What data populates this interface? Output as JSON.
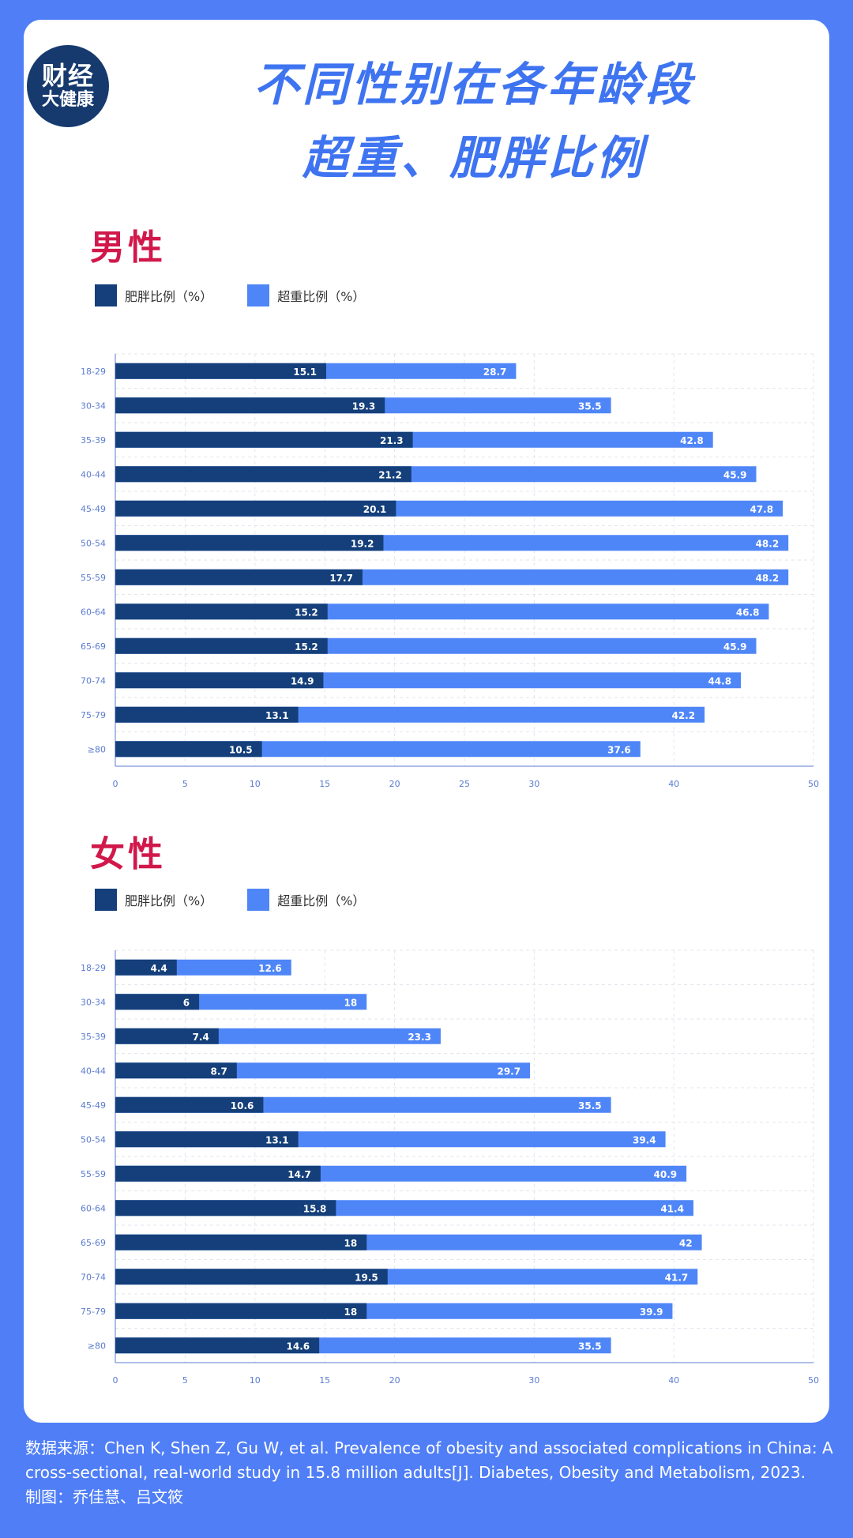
{
  "header": {
    "logo_line1": "财经",
    "logo_line2": "大健康",
    "title_line1": "不同性别在各年龄段",
    "title_line2": "超重、肥胖比例"
  },
  "colors": {
    "obese": "#143f7a",
    "overweight": "#4f86f7",
    "section": "#d1184b",
    "title": "#3f74f1"
  },
  "legend": {
    "obese": "肥胖比例（%）",
    "overweight": "超重比例（%）"
  },
  "chart_data": [
    {
      "type": "bar",
      "orientation": "horizontal",
      "stacked_display": "overlay",
      "section_title": "男性",
      "categories": [
        "18-29",
        "30-34",
        "35-39",
        "40-44",
        "45-49",
        "50-54",
        "55-59",
        "60-64",
        "65-69",
        "70-74",
        "75-79",
        "≥80"
      ],
      "series": [
        {
          "name": "肥胖比例（%）",
          "values": [
            15.1,
            19.3,
            21.3,
            21.2,
            20.1,
            19.2,
            17.7,
            15.2,
            15.2,
            14.9,
            13.1,
            10.5
          ]
        },
        {
          "name": "超重比例（%）",
          "values": [
            28.7,
            35.5,
            42.8,
            45.9,
            47.8,
            48.2,
            48.2,
            46.8,
            45.9,
            44.8,
            42.2,
            37.6
          ]
        }
      ],
      "xticks": [
        0,
        5,
        10,
        15,
        20,
        25,
        30,
        40,
        50
      ],
      "xlim": [
        0,
        50
      ],
      "grid": true,
      "legend_position": "top-left"
    },
    {
      "type": "bar",
      "orientation": "horizontal",
      "stacked_display": "overlay",
      "section_title": "女性",
      "categories": [
        "18-29",
        "30-34",
        "35-39",
        "40-44",
        "45-49",
        "50-54",
        "55-59",
        "60-64",
        "65-69",
        "70-74",
        "75-79",
        "≥80"
      ],
      "series": [
        {
          "name": "肥胖比例（%）",
          "values": [
            4.4,
            6,
            7.4,
            8.7,
            10.6,
            13.1,
            14.7,
            15.8,
            18,
            19.5,
            18,
            14.6
          ]
        },
        {
          "name": "超重比例（%）",
          "values": [
            12.6,
            18,
            23.3,
            29.7,
            35.5,
            39.4,
            40.9,
            41.4,
            42,
            41.7,
            39.9,
            35.5
          ]
        }
      ],
      "xticks": [
        0,
        5,
        10,
        15,
        20,
        30,
        40,
        50
      ],
      "xlim": [
        0,
        50
      ],
      "grid": true,
      "legend_position": "top-left"
    }
  ],
  "footer": {
    "line1": "数据来源：Chen K, Shen Z, Gu W, et al. Prevalence of obesity and associated complications in China: A",
    "line2": "cross-sectional, real-world study in 15.8 million adults[J]. Diabetes, Obesity and Metabolism, 2023.",
    "line3": "制图：乔佳慧、吕文筱"
  }
}
